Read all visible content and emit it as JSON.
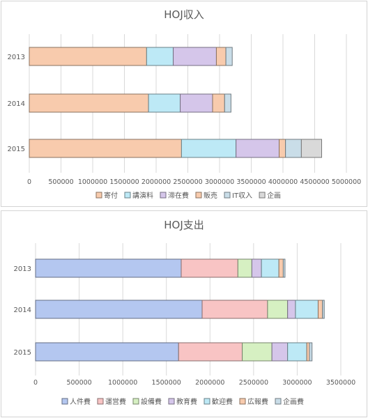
{
  "chart_data": [
    {
      "type": "bar",
      "orientation": "horizontal",
      "stacked": true,
      "title": "HOJ収入",
      "categories": [
        "2013",
        "2014",
        "2015"
      ],
      "xlim": [
        0,
        5000000
      ],
      "xticks": [
        "0",
        "500000",
        "1000000",
        "1500000",
        "2000000",
        "2500000",
        "3000000",
        "3500000",
        "4000000",
        "4500000",
        "5000000"
      ],
      "grid": true,
      "legend_position": "bottom",
      "series": [
        {
          "name": "寄付",
          "color": "#F8CBAD",
          "values": [
            1850000,
            1880000,
            2400000
          ]
        },
        {
          "name": "講演料",
          "color": "#BDE9F6",
          "values": [
            420000,
            500000,
            860000
          ]
        },
        {
          "name": "滞在費",
          "color": "#D5C6EA",
          "values": [
            680000,
            510000,
            680000
          ]
        },
        {
          "name": "販売",
          "color": "#F8CBAD",
          "values": [
            150000,
            190000,
            100000
          ]
        },
        {
          "name": "IT収入",
          "color": "#C9DDE8",
          "values": [
            100000,
            100000,
            250000
          ]
        },
        {
          "name": "企画",
          "color": "#D9D9D9",
          "values": [
            0,
            0,
            320000
          ]
        }
      ]
    },
    {
      "type": "bar",
      "orientation": "horizontal",
      "stacked": true,
      "title": "HOJ支出",
      "categories": [
        "2013",
        "2014",
        "2015"
      ],
      "xlim": [
        0,
        3500000
      ],
      "xticks": [
        "0",
        "500000",
        "1000000",
        "1500000",
        "2000000",
        "2500000",
        "3000000",
        "3500000"
      ],
      "grid": true,
      "legend_position": "bottom",
      "series": [
        {
          "name": "人件費",
          "color": "#B4C7F0",
          "values": [
            1670000,
            1910000,
            1640000
          ]
        },
        {
          "name": "運営費",
          "color": "#F8C4C4",
          "values": [
            650000,
            750000,
            730000
          ]
        },
        {
          "name": "設備費",
          "color": "#D6F0C2",
          "values": [
            160000,
            230000,
            340000
          ]
        },
        {
          "name": "教育費",
          "color": "#D5C6EA",
          "values": [
            110000,
            90000,
            180000
          ]
        },
        {
          "name": "歓迎費",
          "color": "#BDE9F6",
          "values": [
            200000,
            260000,
            220000
          ]
        },
        {
          "name": "広報費",
          "color": "#F8CBAD",
          "values": [
            50000,
            50000,
            30000
          ]
        },
        {
          "name": "企画費",
          "color": "#C9DDE8",
          "values": [
            20000,
            20000,
            30000
          ]
        }
      ]
    }
  ]
}
